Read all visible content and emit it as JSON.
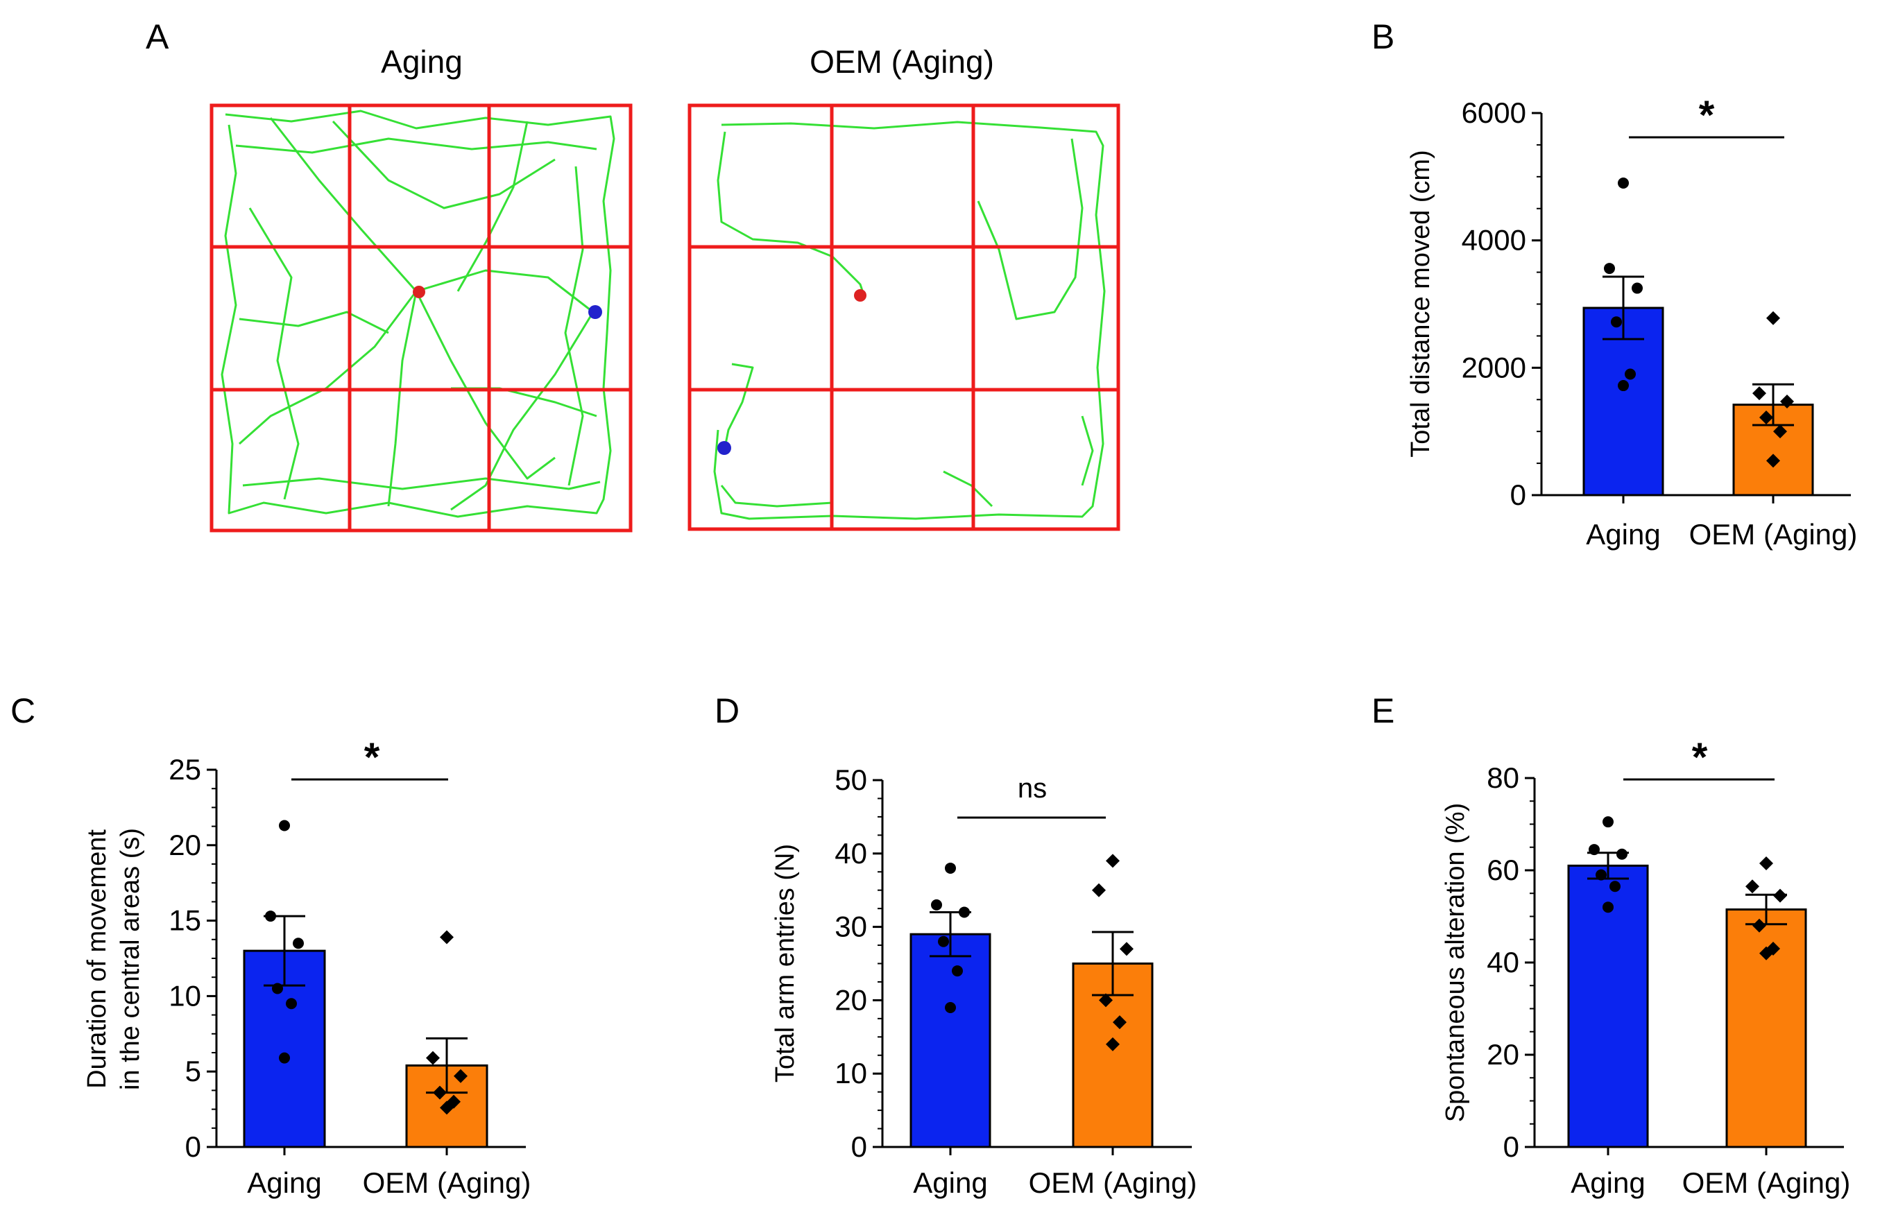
{
  "figure": {
    "panels": {
      "A": "A",
      "B": "B",
      "C": "C",
      "D": "D",
      "E": "E"
    },
    "track_titles": {
      "left": "Aging",
      "right": "OEM (Aging)"
    },
    "colors": {
      "aging": "#0b24ef",
      "oem": "#fb7e0a",
      "grid": "#ee1c1c",
      "track": "#35e035",
      "start_marker": "#dd2222",
      "end_marker": "#2222cc"
    }
  },
  "chart_data": [
    {
      "panel": "B",
      "type": "bar",
      "categories": [
        "Aging",
        "OEM (Aging)"
      ],
      "means": [
        2940,
        1420
      ],
      "sem": [
        490,
        320
      ],
      "points": [
        [
          4900,
          3560,
          3250,
          2720,
          1900,
          1720
        ],
        [
          2780,
          1600,
          1470,
          1220,
          1000,
          540
        ]
      ],
      "ylabel": "Total distance moved (cm)",
      "ylim": [
        0,
        6000
      ],
      "yticks": [
        0,
        2000,
        4000,
        6000
      ],
      "significance": "*"
    },
    {
      "panel": "C",
      "type": "bar",
      "categories": [
        "Aging",
        "OEM (Aging)"
      ],
      "means": [
        13.0,
        5.4
      ],
      "sem": [
        2.3,
        1.8
      ],
      "points": [
        [
          21.3,
          15.3,
          13.5,
          10.5,
          9.5,
          5.9
        ],
        [
          13.9,
          5.9,
          4.7,
          3.6,
          3.0,
          2.6
        ]
      ],
      "ylabel": [
        "Duration of movement",
        "in the central areas (s)"
      ],
      "ylim": [
        0,
        25
      ],
      "yticks": [
        0,
        5,
        10,
        15,
        20,
        25
      ],
      "significance": "*"
    },
    {
      "panel": "D",
      "type": "bar",
      "categories": [
        "Aging",
        "OEM (Aging)"
      ],
      "means": [
        29.0,
        25.0
      ],
      "sem": [
        3.0,
        4.3
      ],
      "points": [
        [
          38,
          33,
          32,
          28,
          24,
          19
        ],
        [
          39,
          35,
          27,
          20,
          17,
          14
        ]
      ],
      "ylabel": "Total arm entries (N)",
      "ylim": [
        0,
        50
      ],
      "yticks": [
        0,
        10,
        20,
        30,
        40,
        50
      ],
      "significance": "ns"
    },
    {
      "panel": "E",
      "type": "bar",
      "categories": [
        "Aging",
        "OEM (Aging)"
      ],
      "means": [
        61.0,
        51.5
      ],
      "sem": [
        2.8,
        3.2
      ],
      "points": [
        [
          70.5,
          64.5,
          63.5,
          59.0,
          56.5,
          52.0
        ],
        [
          61.5,
          56.5,
          54.5,
          48.0,
          43.0,
          42.0
        ]
      ],
      "ylabel": "Spontaneous alteration (%)",
      "ylim": [
        0,
        80
      ],
      "yticks": [
        0,
        20,
        40,
        60,
        80
      ],
      "significance": "*"
    }
  ]
}
